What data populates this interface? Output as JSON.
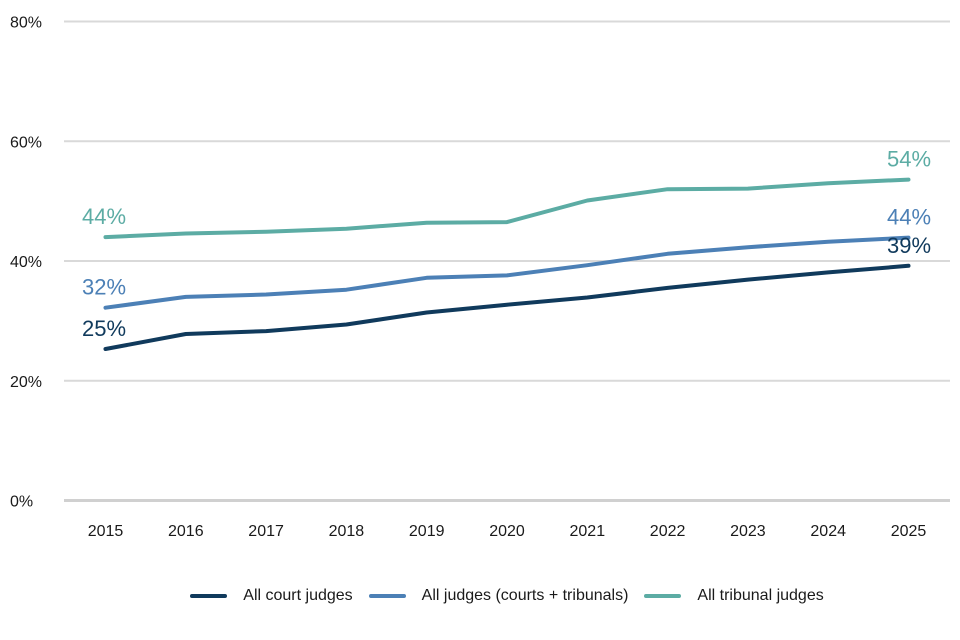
{
  "chart_data": {
    "type": "line",
    "x": [
      2015,
      2016,
      2017,
      2018,
      2019,
      2020,
      2021,
      2022,
      2023,
      2024,
      2025
    ],
    "series": [
      {
        "name": "All court judges",
        "color": "#103A5C",
        "values": [
          25.3,
          27.8,
          28.3,
          29.4,
          31.4,
          32.7,
          33.9,
          35.5,
          36.9,
          38.1,
          39.2
        ],
        "start_label": "25%",
        "end_label": "39%"
      },
      {
        "name": "All judges (courts + tribunals)",
        "color": "#4C80B6",
        "values": [
          32.2,
          34.0,
          34.4,
          35.2,
          37.2,
          37.6,
          39.3,
          41.2,
          42.3,
          43.2,
          43.9
        ],
        "start_label": "32%",
        "end_label": "44%"
      },
      {
        "name": "All tribunal judges",
        "color": "#5CACA4",
        "values": [
          44.0,
          44.6,
          44.9,
          45.4,
          46.4,
          46.5,
          50.1,
          52.0,
          52.1,
          53.0,
          53.6
        ],
        "start_label": "44%",
        "end_label": "54%"
      }
    ],
    "title": "",
    "xlabel": "",
    "ylabel": "",
    "ylim": [
      0,
      80
    ],
    "y_ticks": [
      {
        "value": 80,
        "label": "80%"
      },
      {
        "value": 60,
        "label": "60%"
      },
      {
        "value": 40,
        "label": "40%"
      },
      {
        "value": 20,
        "label": "20%"
      },
      {
        "value": 0,
        "label": "0%"
      }
    ],
    "grid": true,
    "legend_position": "bottom",
    "colors": {
      "grid": "#D9D9D9",
      "baseline": "#D0D0D0",
      "axis_text": "#1A1A1A"
    }
  }
}
